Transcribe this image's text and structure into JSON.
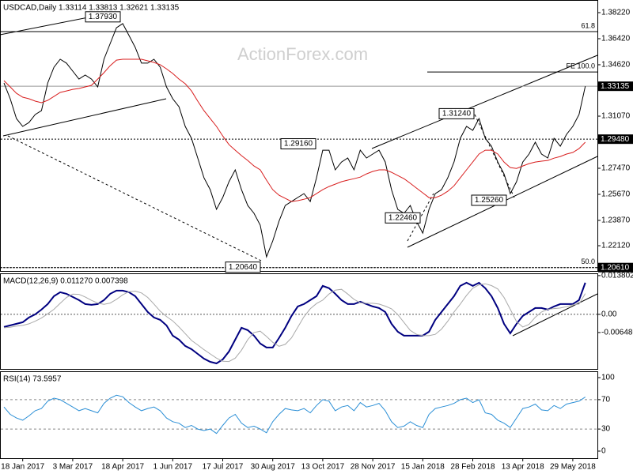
{
  "chart_data": [
    {
      "type": "line",
      "title": "USDCAD,Daily  1.33114 1.33813 1.32621 1.33135",
      "watermark": "ActionForex.com",
      "categories": [
        null,
        null,
        null,
        "18 Jan 2017",
        null,
        null,
        null,
        null,
        null,
        null,
        null,
        "3 Mar 2017",
        null,
        null,
        null,
        null,
        null,
        null,
        null,
        "18 Apr 2017",
        null,
        null,
        null,
        null,
        null,
        null,
        null,
        "1 Jun 2017",
        null,
        null,
        null,
        null,
        null,
        null,
        null,
        "17 Jul 2017",
        null,
        null,
        null,
        null,
        null,
        null,
        null,
        "30 Aug 2017",
        null,
        null,
        null,
        null,
        null,
        null,
        null,
        "13 Oct 2017",
        null,
        null,
        null,
        null,
        null,
        null,
        null,
        "28 Nov 2017",
        null,
        null,
        null,
        null,
        null,
        null,
        null,
        "15 Jan 2018",
        null,
        null,
        null,
        null,
        null,
        null,
        null,
        "28 Feb 2018",
        null,
        null,
        null,
        null,
        null,
        null,
        null,
        "13 Apr 2018",
        null,
        null,
        null,
        null,
        null,
        null,
        null,
        "29 May 2018",
        null,
        null
      ],
      "series": [
        {
          "color": "#000000",
          "values": [
            1.3336,
            1.3227,
            1.309,
            1.3036,
            1.3063,
            1.3118,
            1.3145,
            1.3336,
            1.3445,
            1.35,
            1.3473,
            1.3418,
            1.3363,
            1.3391,
            1.3363,
            1.3309,
            1.35,
            1.3609,
            1.3718,
            1.3746,
            1.3664,
            1.3582,
            1.3473,
            1.3473,
            1.35,
            1.3445,
            1.3309,
            1.3227,
            1.3172,
            1.3036,
            1.2954,
            1.2818,
            1.2681,
            1.2599,
            1.2463,
            1.2545,
            1.2654,
            1.2736,
            1.2599,
            1.249,
            1.2436,
            1.2354,
            1.2135,
            1.2245,
            1.2381,
            1.249,
            1.2517,
            1.2545,
            1.2572,
            1.2517,
            1.2681,
            1.2872,
            1.2872,
            1.2736,
            1.279,
            1.2818,
            1.2736,
            1.2872,
            1.2818,
            1.2845,
            1.2872,
            1.279,
            1.2599,
            1.2463,
            1.2436,
            1.249,
            1.2381,
            1.2299,
            1.2463,
            1.2572,
            1.2599,
            1.2681,
            1.279,
            1.2954,
            1.3036,
            1.3009,
            1.309,
            1.2954,
            1.2899,
            1.279,
            1.2708,
            1.2572,
            1.2654,
            1.279,
            1.2845,
            1.2927,
            1.2845,
            1.2818,
            1.2954,
            1.2899,
            1.2981,
            1.3036,
            1.3118,
            1.33135
          ]
        },
        {
          "color": "#d81e1e",
          "values": [
            1.3352,
            1.3309,
            1.3265,
            1.3238,
            1.3227,
            1.3211,
            1.32,
            1.3216,
            1.3243,
            1.3271,
            1.3281,
            1.3292,
            1.3298,
            1.3309,
            1.332,
            1.3363,
            1.3407,
            1.3456,
            1.3494,
            1.35,
            1.35,
            1.35,
            1.35,
            1.3489,
            1.3478,
            1.3462,
            1.3434,
            1.3402,
            1.3363,
            1.3331,
            1.3281,
            1.3211,
            1.3145,
            1.309,
            1.3036,
            1.297,
            1.291,
            1.2872,
            1.2834,
            1.2801,
            1.2763,
            1.2736,
            1.2665,
            1.2599,
            1.2561,
            1.2539,
            1.2517,
            1.2523,
            1.2533,
            1.2544,
            1.2572,
            1.2599,
            1.2621,
            1.2637,
            1.2654,
            1.2665,
            1.2675,
            1.2686,
            1.2708,
            1.2725,
            1.2736,
            1.2736,
            1.2719,
            1.2697,
            1.2675,
            1.2643,
            1.261,
            1.2577,
            1.2544,
            1.2544,
            1.2561,
            1.2588,
            1.2626,
            1.2681,
            1.2736,
            1.279,
            1.2845,
            1.2872,
            1.2872,
            1.2845,
            1.279,
            1.2752,
            1.2746,
            1.2763,
            1.2779,
            1.279,
            1.2796,
            1.2801,
            1.2817,
            1.2828,
            1.2845,
            1.2856,
            1.2883,
            1.2927
          ]
        }
      ],
      "ylim": [
        1.2043,
        1.3882
      ],
      "yticks": [
        {
          "value": 1.3822,
          "label": "1.38220"
        },
        {
          "value": 1.3642,
          "label": "1.36420"
        },
        {
          "value": 1.3462,
          "label": "1.34620"
        },
        {
          "value": 1.3107,
          "label": "1.31070"
        },
        {
          "value": 1.2747,
          "label": "1.27470"
        },
        {
          "value": 1.2567,
          "label": "1.25670"
        },
        {
          "value": 1.2387,
          "label": "1.23870"
        },
        {
          "value": 1.2212,
          "label": "1.22120"
        }
      ],
      "price_labels": [
        {
          "value": 1.33135,
          "label": "1.33135"
        },
        {
          "value": 1.2948,
          "label": "1.29480"
        },
        {
          "value": 1.2061,
          "label": "1.20610"
        }
      ],
      "levels": [
        {
          "label": "61.8",
          "price": 1.3691
        },
        {
          "label": "FE 100.0",
          "price": 1.3412
        },
        {
          "label": "50.0",
          "price": 1.2061
        }
      ],
      "callouts": [
        {
          "value": 1.3793,
          "label": "1.37930"
        },
        {
          "value": 1.2916,
          "label": "1.29160"
        },
        {
          "value": 1.3124,
          "label": "1.31240"
        },
        {
          "value": 1.2526,
          "label": "1.25260"
        },
        {
          "value": 1.2246,
          "label": "1.22460"
        },
        {
          "value": 1.2064,
          "label": "1.20640"
        }
      ]
    },
    {
      "type": "line",
      "title": "MACD(12,26,9) 0.011270 0.007398",
      "series": [
        {
          "color": "#000080",
          "values": [
            -0.00451,
            -0.00395,
            -0.00338,
            -0.00282,
            -0.00113,
            0,
            0.00169,
            0.00367,
            0.00649,
            0.0079,
            0.00733,
            0.0062,
            0.00508,
            0.00367,
            0.00338,
            0.00367,
            0.00508,
            0.00733,
            0.00846,
            0.00846,
            0.0079,
            0.00649,
            0.00367,
            0.00085,
            -0.00113,
            -0.00197,
            -0.00395,
            -0.00761,
            -0.00902,
            -0.01128,
            -0.01241,
            -0.0141,
            -0.01579,
            -0.01692,
            -0.01748,
            -0.01607,
            -0.01325,
            -0.00902,
            -0.00479,
            -0.00564,
            -0.00761,
            -0.01043,
            -0.01184,
            -0.01184,
            -0.00846,
            -0.00479,
            -0.00056,
            0.00282,
            0.00367,
            0.00508,
            0.00649,
            0.01015,
            0.00931,
            0.00733,
            0.00508,
            0.00367,
            0.00367,
            0.00451,
            0.00367,
            0.00282,
            0.00226,
            0.00085,
            -0.00338,
            -0.0062,
            -0.00761,
            -0.00761,
            -0.00761,
            -0.00761,
            -0.0062,
            -0.00197,
            0.00085,
            0.00367,
            0.00649,
            0.01015,
            0.01128,
            0.01015,
            0.01128,
            0.00931,
            0.00649,
            0.00226,
            -0.00338,
            -0.00677,
            -0.00338,
            -0.00056,
            0.00085,
            0.00226,
            0.00226,
            0.00169,
            0.00282,
            0.00367,
            0.00367,
            0.00367,
            0.00508,
            0.01127
          ]
        },
        {
          "color": "#a9a9a9",
          "values": [
            -0.0048,
            -0.0046,
            -0.0042,
            -0.00395,
            -0.00338,
            -0.00244,
            -0.00132,
            0.00019,
            0.00179,
            0.00395,
            0.00602,
            0.00724,
            0.00714,
            0.0062,
            0.00498,
            0.00404,
            0.00357,
            0.00404,
            0.00536,
            0.00696,
            0.00808,
            0.00827,
            0.00762,
            0.00602,
            0.00367,
            0.00113,
            -0.00075,
            -0.00235,
            -0.00451,
            -0.00686,
            -0.0093,
            -0.0109,
            -0.0126,
            -0.0141,
            -0.0156,
            -0.01673,
            -0.01682,
            -0.0156,
            -0.01278,
            -0.00902,
            -0.00648,
            -0.00601,
            -0.00789,
            -0.00996,
            -0.01137,
            -0.01071,
            -0.0084,
            -0.0046,
            -0.00084,
            0.00198,
            0.00386,
            0.00508,
            0.00724,
            0.00865,
            0.00893,
            0.00724,
            0.00536,
            0.00414,
            0.00395,
            0.00395,
            0.00367,
            0.00292,
            0.00198,
            -9e-05,
            -0.00291,
            -0.00573,
            -0.00714,
            -0.00761,
            -0.00761,
            -0.00714,
            -0.00526,
            -0.00244,
            0.00085,
            0.00367,
            0.00677,
            0.00931,
            0.01053,
            0.0109,
            0.01025,
            0.00903,
            0.00602,
            0.00179,
            -0.0026,
            -0.00451,
            -0.00357,
            -0.00103,
            0.00085,
            0.00179,
            0.00207,
            0.00226,
            0.00273,
            0.00339,
            0.00367,
            0.0074
          ]
        }
      ],
      "ylim": [
        -0.0189,
        0.0149
      ],
      "yticks": [
        0.013802,
        {
          "value": 0,
          "label": "0.00"
        },
        {
          "value": -0.00648,
          "label": "-0.006480"
        }
      ],
      "zero_line": true
    },
    {
      "type": "line",
      "title": "RSI(14) 73.5957",
      "series": [
        {
          "color": "#2b8fd6",
          "values": [
            60,
            50,
            45,
            42,
            48,
            55,
            58,
            68,
            72,
            70,
            65,
            60,
            55,
            58,
            55,
            52,
            65,
            72,
            76,
            74,
            66,
            60,
            55,
            58,
            60,
            55,
            45,
            40,
            38,
            32,
            35,
            30,
            28,
            30,
            24,
            35,
            45,
            50,
            38,
            32,
            34,
            30,
            25,
            40,
            50,
            58,
            56,
            55,
            58,
            52,
            62,
            70,
            68,
            55,
            60,
            62,
            55,
            66,
            60,
            62,
            65,
            55,
            40,
            32,
            34,
            40,
            35,
            32,
            50,
            58,
            60,
            62,
            65,
            70,
            72,
            66,
            70,
            52,
            50,
            42,
            38,
            32,
            45,
            58,
            60,
            64,
            56,
            55,
            62,
            58,
            64,
            66,
            68,
            73.5957
          ]
        }
      ],
      "ylim": [
        0,
        100
      ],
      "yticks": [
        100,
        70,
        30,
        0
      ],
      "grid": true
    }
  ]
}
